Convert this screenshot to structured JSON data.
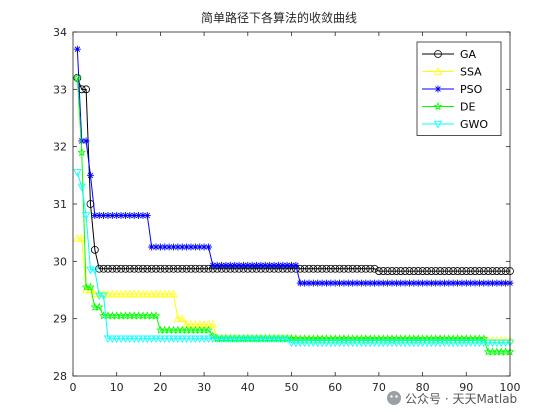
{
  "chart_data": {
    "type": "line",
    "title": "简单路径下各算法的收敛曲线",
    "xlabel": "",
    "ylabel": "",
    "xlim": [
      0,
      100
    ],
    "ylim": [
      28,
      34
    ],
    "xticks": [
      0,
      10,
      20,
      30,
      40,
      50,
      60,
      70,
      80,
      90,
      100
    ],
    "yticks": [
      28,
      29,
      30,
      31,
      32,
      33,
      34
    ],
    "grid": false,
    "legend_position": "top-right",
    "series": [
      {
        "name": "GA",
        "color": "#000000",
        "marker": "circle",
        "steps": [
          [
            1,
            33.2
          ],
          [
            2,
            33.0
          ],
          [
            3,
            33.0
          ],
          [
            4,
            31.0
          ],
          [
            5,
            30.2
          ],
          [
            6,
            29.87
          ],
          [
            70,
            29.83
          ],
          [
            100,
            29.83
          ]
        ]
      },
      {
        "name": "SSA",
        "color": "#ffff00",
        "marker": "triangle-up",
        "steps": [
          [
            1,
            30.4
          ],
          [
            3,
            29.5
          ],
          [
            5,
            29.43
          ],
          [
            24,
            29.0
          ],
          [
            26,
            28.9
          ],
          [
            33,
            28.67
          ],
          [
            51,
            28.62
          ],
          [
            100,
            28.62
          ]
        ]
      },
      {
        "name": "PSO",
        "color": "#0000ff",
        "marker": "asterisk",
        "steps": [
          [
            1,
            33.7
          ],
          [
            2,
            32.1
          ],
          [
            4,
            31.5
          ],
          [
            5,
            30.8
          ],
          [
            18,
            30.25
          ],
          [
            32,
            29.93
          ],
          [
            52,
            29.62
          ],
          [
            100,
            29.62
          ]
        ]
      },
      {
        "name": "DE",
        "color": "#00ff00",
        "marker": "pentagram",
        "steps": [
          [
            1,
            33.2
          ],
          [
            2,
            31.9
          ],
          [
            3,
            29.55
          ],
          [
            5,
            29.2
          ],
          [
            7,
            29.05
          ],
          [
            20,
            28.8
          ],
          [
            32,
            28.7
          ],
          [
            33,
            28.65
          ],
          [
            95,
            28.42
          ],
          [
            100,
            28.42
          ]
        ]
      },
      {
        "name": "GWO",
        "color": "#00ffff",
        "marker": "triangle-down",
        "steps": [
          [
            1,
            31.55
          ],
          [
            2,
            31.3
          ],
          [
            3,
            30.8
          ],
          [
            4,
            29.85
          ],
          [
            6,
            29.4
          ],
          [
            8,
            28.65
          ],
          [
            50,
            28.58
          ],
          [
            100,
            28.58
          ]
        ]
      }
    ]
  },
  "watermark": "公众号 · 天天Matlab"
}
